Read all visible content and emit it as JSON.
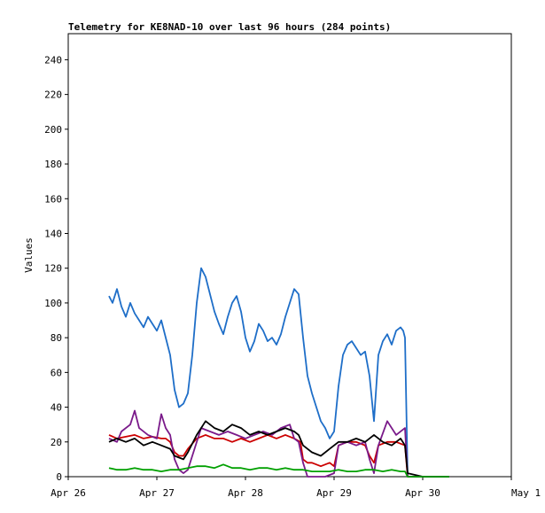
{
  "chart_data": {
    "type": "line",
    "title": "Telemetry for KE8NAD-10 over last 96 hours (284 points)",
    "xlabel": "",
    "ylabel": "Values",
    "x_tick_labels": [
      "Apr 26",
      "Apr 27",
      "Apr 28",
      "Apr 29",
      "Apr 30",
      "May 1"
    ],
    "y_ticks": [
      0,
      20,
      40,
      60,
      80,
      100,
      120,
      140,
      160,
      180,
      200,
      220,
      240
    ],
    "xlim_days": [
      0,
      5
    ],
    "ylim": [
      0,
      255
    ],
    "grid": false,
    "legend": "none",
    "series": [
      {
        "color": "#1e6ec8",
        "points": [
          [
            0.46,
            104
          ],
          [
            0.5,
            100
          ],
          [
            0.55,
            108
          ],
          [
            0.6,
            98
          ],
          [
            0.65,
            92
          ],
          [
            0.7,
            100
          ],
          [
            0.75,
            94
          ],
          [
            0.8,
            90
          ],
          [
            0.85,
            86
          ],
          [
            0.9,
            92
          ],
          [
            0.95,
            88
          ],
          [
            1.0,
            84
          ],
          [
            1.05,
            90
          ],
          [
            1.1,
            80
          ],
          [
            1.15,
            70
          ],
          [
            1.2,
            50
          ],
          [
            1.25,
            40
          ],
          [
            1.3,
            42
          ],
          [
            1.35,
            48
          ],
          [
            1.4,
            70
          ],
          [
            1.45,
            100
          ],
          [
            1.5,
            120
          ],
          [
            1.55,
            115
          ],
          [
            1.6,
            105
          ],
          [
            1.65,
            95
          ],
          [
            1.7,
            88
          ],
          [
            1.75,
            82
          ],
          [
            1.8,
            92
          ],
          [
            1.85,
            100
          ],
          [
            1.9,
            104
          ],
          [
            1.95,
            95
          ],
          [
            2.0,
            80
          ],
          [
            2.05,
            72
          ],
          [
            2.1,
            78
          ],
          [
            2.15,
            88
          ],
          [
            2.2,
            84
          ],
          [
            2.25,
            78
          ],
          [
            2.3,
            80
          ],
          [
            2.35,
            76
          ],
          [
            2.4,
            82
          ],
          [
            2.45,
            92
          ],
          [
            2.5,
            100
          ],
          [
            2.55,
            108
          ],
          [
            2.6,
            105
          ],
          [
            2.65,
            80
          ],
          [
            2.7,
            58
          ],
          [
            2.75,
            48
          ],
          [
            2.8,
            40
          ],
          [
            2.85,
            32
          ],
          [
            2.9,
            28
          ],
          [
            2.95,
            22
          ],
          [
            3.0,
            26
          ],
          [
            3.05,
            52
          ],
          [
            3.1,
            70
          ],
          [
            3.15,
            76
          ],
          [
            3.2,
            78
          ],
          [
            3.25,
            74
          ],
          [
            3.3,
            70
          ],
          [
            3.35,
            72
          ],
          [
            3.4,
            58
          ],
          [
            3.45,
            32
          ],
          [
            3.5,
            70
          ],
          [
            3.55,
            78
          ],
          [
            3.6,
            82
          ],
          [
            3.65,
            76
          ],
          [
            3.7,
            84
          ],
          [
            3.75,
            86
          ],
          [
            3.78,
            84
          ],
          [
            3.8,
            80
          ],
          [
            3.83,
            0
          ],
          [
            3.87,
            0
          ],
          [
            4.0,
            0
          ],
          [
            4.1,
            0
          ],
          [
            4.2,
            0
          ],
          [
            4.3,
            0
          ]
        ]
      },
      {
        "color": "#cc0000",
        "points": [
          [
            0.46,
            24
          ],
          [
            0.55,
            22
          ],
          [
            0.65,
            23
          ],
          [
            0.75,
            24
          ],
          [
            0.85,
            22
          ],
          [
            0.95,
            23
          ],
          [
            1.05,
            22
          ],
          [
            1.1,
            22
          ],
          [
            1.15,
            20
          ],
          [
            1.2,
            14
          ],
          [
            1.25,
            12
          ],
          [
            1.3,
            12
          ],
          [
            1.35,
            16
          ],
          [
            1.45,
            22
          ],
          [
            1.55,
            24
          ],
          [
            1.65,
            22
          ],
          [
            1.75,
            22
          ],
          [
            1.85,
            20
          ],
          [
            1.95,
            22
          ],
          [
            2.05,
            20
          ],
          [
            2.15,
            22
          ],
          [
            2.25,
            24
          ],
          [
            2.35,
            22
          ],
          [
            2.45,
            24
          ],
          [
            2.55,
            22
          ],
          [
            2.62,
            20
          ],
          [
            2.65,
            10
          ],
          [
            2.7,
            8
          ],
          [
            2.75,
            8
          ],
          [
            2.85,
            6
          ],
          [
            2.95,
            8
          ],
          [
            3.0,
            6
          ],
          [
            3.05,
            18
          ],
          [
            3.15,
            20
          ],
          [
            3.25,
            20
          ],
          [
            3.35,
            18
          ],
          [
            3.4,
            12
          ],
          [
            3.45,
            8
          ],
          [
            3.5,
            18
          ],
          [
            3.6,
            20
          ],
          [
            3.7,
            20
          ],
          [
            3.8,
            18
          ],
          [
            3.83,
            0
          ],
          [
            4.3,
            0
          ]
        ]
      },
      {
        "color": "#7a1a8a",
        "points": [
          [
            0.46,
            22
          ],
          [
            0.55,
            20
          ],
          [
            0.6,
            26
          ],
          [
            0.7,
            30
          ],
          [
            0.75,
            38
          ],
          [
            0.8,
            28
          ],
          [
            0.9,
            24
          ],
          [
            1.0,
            22
          ],
          [
            1.05,
            36
          ],
          [
            1.1,
            28
          ],
          [
            1.15,
            24
          ],
          [
            1.2,
            10
          ],
          [
            1.25,
            4
          ],
          [
            1.3,
            2
          ],
          [
            1.35,
            4
          ],
          [
            1.4,
            12
          ],
          [
            1.5,
            28
          ],
          [
            1.6,
            26
          ],
          [
            1.7,
            24
          ],
          [
            1.8,
            26
          ],
          [
            1.9,
            24
          ],
          [
            2.0,
            22
          ],
          [
            2.1,
            24
          ],
          [
            2.2,
            26
          ],
          [
            2.3,
            24
          ],
          [
            2.4,
            28
          ],
          [
            2.5,
            30
          ],
          [
            2.55,
            22
          ],
          [
            2.6,
            20
          ],
          [
            2.65,
            8
          ],
          [
            2.7,
            0
          ],
          [
            2.8,
            0
          ],
          [
            2.9,
            0
          ],
          [
            3.0,
            2
          ],
          [
            3.05,
            18
          ],
          [
            3.15,
            20
          ],
          [
            3.25,
            18
          ],
          [
            3.35,
            20
          ],
          [
            3.4,
            10
          ],
          [
            3.45,
            2
          ],
          [
            3.5,
            18
          ],
          [
            3.6,
            32
          ],
          [
            3.7,
            24
          ],
          [
            3.8,
            28
          ],
          [
            3.83,
            0
          ],
          [
            4.3,
            0
          ]
        ]
      },
      {
        "color": "#000000",
        "points": [
          [
            0.46,
            20
          ],
          [
            0.55,
            22
          ],
          [
            0.65,
            20
          ],
          [
            0.75,
            22
          ],
          [
            0.85,
            18
          ],
          [
            0.95,
            20
          ],
          [
            1.05,
            18
          ],
          [
            1.15,
            16
          ],
          [
            1.2,
            12
          ],
          [
            1.3,
            10
          ],
          [
            1.35,
            14
          ],
          [
            1.45,
            24
          ],
          [
            1.5,
            28
          ],
          [
            1.55,
            32
          ],
          [
            1.65,
            28
          ],
          [
            1.75,
            26
          ],
          [
            1.85,
            30
          ],
          [
            1.95,
            28
          ],
          [
            2.05,
            24
          ],
          [
            2.15,
            26
          ],
          [
            2.25,
            24
          ],
          [
            2.35,
            26
          ],
          [
            2.45,
            28
          ],
          [
            2.55,
            26
          ],
          [
            2.6,
            24
          ],
          [
            2.65,
            18
          ],
          [
            2.75,
            14
          ],
          [
            2.85,
            12
          ],
          [
            2.95,
            16
          ],
          [
            3.05,
            20
          ],
          [
            3.15,
            20
          ],
          [
            3.25,
            22
          ],
          [
            3.35,
            20
          ],
          [
            3.45,
            24
          ],
          [
            3.55,
            20
          ],
          [
            3.65,
            18
          ],
          [
            3.75,
            22
          ],
          [
            3.8,
            18
          ],
          [
            3.83,
            2
          ],
          [
            4.0,
            0
          ],
          [
            4.3,
            0
          ]
        ]
      },
      {
        "color": "#00a000",
        "points": [
          [
            0.46,
            5
          ],
          [
            0.55,
            4
          ],
          [
            0.65,
            4
          ],
          [
            0.75,
            5
          ],
          [
            0.85,
            4
          ],
          [
            0.95,
            4
          ],
          [
            1.05,
            3
          ],
          [
            1.15,
            4
          ],
          [
            1.25,
            4
          ],
          [
            1.35,
            5
          ],
          [
            1.45,
            6
          ],
          [
            1.55,
            6
          ],
          [
            1.65,
            5
          ],
          [
            1.75,
            7
          ],
          [
            1.85,
            5
          ],
          [
            1.95,
            5
          ],
          [
            2.05,
            4
          ],
          [
            2.15,
            5
          ],
          [
            2.25,
            5
          ],
          [
            2.35,
            4
          ],
          [
            2.45,
            5
          ],
          [
            2.55,
            4
          ],
          [
            2.65,
            4
          ],
          [
            2.75,
            3
          ],
          [
            2.85,
            3
          ],
          [
            2.95,
            3
          ],
          [
            3.05,
            4
          ],
          [
            3.15,
            3
          ],
          [
            3.25,
            3
          ],
          [
            3.35,
            4
          ],
          [
            3.45,
            4
          ],
          [
            3.55,
            3
          ],
          [
            3.65,
            4
          ],
          [
            3.75,
            3
          ],
          [
            3.8,
            3
          ],
          [
            3.83,
            0
          ],
          [
            4.3,
            0
          ]
        ]
      }
    ]
  }
}
